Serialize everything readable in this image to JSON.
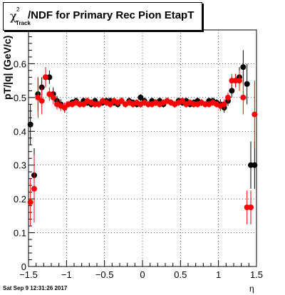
{
  "title": {
    "greek": "χ",
    "sup": "2",
    "sub": "Track",
    "rest": "/NDF for Primary Rec Pion EtapT"
  },
  "timestamp": "Sat Sep  9 12:31:26 2017",
  "chart_data": {
    "type": "scatter",
    "xlabel": "η",
    "ylabel": "pT/|q| (GeV/c)",
    "xlim": [
      -1.5,
      1.5
    ],
    "ylim": [
      0,
      0.7
    ],
    "xticks": [
      "−1.5",
      "−1",
      "−0.5",
      "0",
      "0.5",
      "1",
      "1.5"
    ],
    "yticks": [
      "0",
      "0.1",
      "0.2",
      "0.3",
      "0.4",
      "0.5",
      "0.6"
    ],
    "grid": true,
    "series": [
      {
        "color": "#000000",
        "x": [
          -1.475,
          -1.425,
          -1.375,
          -1.325,
          -1.275,
          -1.225,
          -1.175,
          -1.125,
          -1.075,
          -1.025,
          -0.975,
          -0.925,
          -0.875,
          -0.825,
          -0.775,
          -0.725,
          -0.675,
          -0.625,
          -0.575,
          -0.525,
          -0.475,
          -0.425,
          -0.375,
          -0.325,
          -0.275,
          -0.225,
          -0.175,
          -0.125,
          -0.075,
          -0.025,
          0.025,
          0.075,
          0.125,
          0.175,
          0.225,
          0.275,
          0.325,
          0.375,
          0.425,
          0.475,
          0.525,
          0.575,
          0.625,
          0.675,
          0.725,
          0.775,
          0.825,
          0.875,
          0.925,
          0.975,
          1.025,
          1.075,
          1.125,
          1.175,
          1.225,
          1.275,
          1.325,
          1.375,
          1.425,
          1.475
        ],
        "y": [
          0.42,
          0.27,
          0.51,
          0.53,
          0.56,
          0.56,
          0.51,
          0.49,
          0.48,
          0.47,
          0.48,
          0.485,
          0.49,
          0.48,
          0.49,
          0.485,
          0.48,
          0.49,
          0.48,
          0.485,
          0.49,
          0.49,
          0.485,
          0.48,
          0.49,
          0.48,
          0.49,
          0.485,
          0.48,
          0.5,
          0.49,
          0.48,
          0.49,
          0.485,
          0.49,
          0.48,
          0.49,
          0.485,
          0.48,
          0.49,
          0.485,
          0.49,
          0.48,
          0.485,
          0.49,
          0.485,
          0.48,
          0.49,
          0.49,
          0.485,
          0.48,
          0.47,
          0.49,
          0.52,
          0.55,
          0.56,
          0.59,
          0.54,
          0.3,
          0.3
        ],
        "err": [
          0.06,
          0.08,
          0.05,
          0.03,
          0.03,
          0.02,
          0.02,
          0.015,
          0.015,
          0.015,
          0.01,
          0.01,
          0.01,
          0.01,
          0.01,
          0.01,
          0.01,
          0.01,
          0.01,
          0.01,
          0.01,
          0.01,
          0.01,
          0.01,
          0.01,
          0.01,
          0.01,
          0.01,
          0.01,
          0.01,
          0.01,
          0.01,
          0.01,
          0.01,
          0.01,
          0.01,
          0.01,
          0.01,
          0.01,
          0.01,
          0.01,
          0.01,
          0.01,
          0.01,
          0.01,
          0.01,
          0.01,
          0.01,
          0.01,
          0.01,
          0.015,
          0.015,
          0.015,
          0.02,
          0.02,
          0.03,
          0.05,
          0.06,
          0.07,
          0.07
        ]
      },
      {
        "color": "#ff0000",
        "x": [
          -1.475,
          -1.425,
          -1.375,
          -1.325,
          -1.275,
          -1.225,
          -1.175,
          -1.125,
          -1.075,
          -1.025,
          -0.975,
          -0.925,
          -0.875,
          -0.825,
          -0.775,
          -0.725,
          -0.675,
          -0.625,
          -0.575,
          -0.525,
          -0.475,
          -0.425,
          -0.375,
          -0.325,
          -0.275,
          -0.225,
          -0.175,
          -0.125,
          -0.075,
          -0.025,
          0.025,
          0.075,
          0.125,
          0.175,
          0.225,
          0.275,
          0.325,
          0.375,
          0.425,
          0.475,
          0.525,
          0.575,
          0.625,
          0.675,
          0.725,
          0.775,
          0.825,
          0.875,
          0.925,
          0.975,
          1.025,
          1.075,
          1.125,
          1.175,
          1.225,
          1.275,
          1.325,
          1.375,
          1.425,
          1.475
        ],
        "y": [
          0.19,
          0.23,
          0.5,
          0.49,
          0.56,
          0.51,
          0.5,
          0.48,
          0.475,
          0.47,
          0.48,
          0.48,
          0.485,
          0.48,
          0.48,
          0.49,
          0.485,
          0.48,
          0.48,
          0.49,
          0.485,
          0.48,
          0.49,
          0.485,
          0.49,
          0.48,
          0.485,
          0.48,
          0.485,
          0.48,
          0.485,
          0.48,
          0.48,
          0.485,
          0.48,
          0.485,
          0.49,
          0.485,
          0.48,
          0.485,
          0.49,
          0.48,
          0.485,
          0.48,
          0.48,
          0.485,
          0.48,
          0.48,
          0.485,
          0.48,
          0.475,
          0.48,
          0.5,
          0.55,
          0.55,
          0.55,
          0.5,
          0.175,
          0.175,
          0.45
        ],
        "err": [
          0.07,
          0.1,
          0.06,
          0.04,
          0.03,
          0.02,
          0.02,
          0.015,
          0.015,
          0.015,
          0.01,
          0.01,
          0.01,
          0.01,
          0.01,
          0.01,
          0.01,
          0.01,
          0.01,
          0.01,
          0.01,
          0.01,
          0.01,
          0.01,
          0.01,
          0.01,
          0.01,
          0.01,
          0.01,
          0.01,
          0.01,
          0.01,
          0.01,
          0.01,
          0.01,
          0.01,
          0.01,
          0.01,
          0.01,
          0.01,
          0.01,
          0.01,
          0.01,
          0.01,
          0.01,
          0.01,
          0.01,
          0.01,
          0.01,
          0.01,
          0.015,
          0.015,
          0.015,
          0.02,
          0.02,
          0.03,
          0.05,
          0.05,
          0.05,
          0.1
        ]
      }
    ]
  }
}
